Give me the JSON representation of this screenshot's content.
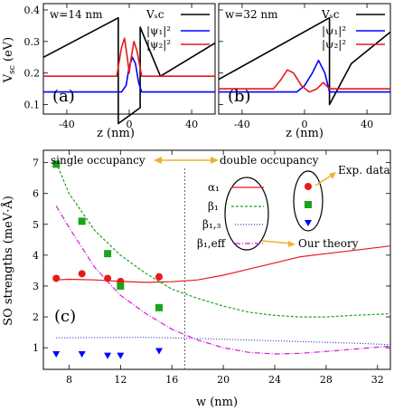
{
  "panel_a_label": "(a)",
  "panel_b_label": "(b)",
  "panel_c_label": "(c)",
  "panel_a_w": "w=14 nm",
  "panel_b_w": "w=32 nm",
  "legend_top": [
    "Vₛc",
    "|ψ₁|²",
    "|ψ₂|²"
  ],
  "legend_c": [
    "α₁",
    "β₁",
    "β₁,₃",
    "β₁,eff"
  ],
  "annotations": {
    "single": "single occupancy",
    "double": "double occupancy",
    "exp": "Exp. data",
    "theory": "Our theory"
  },
  "colors": {
    "vsc": "#000000",
    "psi1": "#0000ff",
    "psi2": "#e8191c",
    "alpha": "#e8191c",
    "beta": "#1aa31a",
    "beta13": "#3333cc",
    "betaeff": "#d61bd6",
    "arrow": "#f0b030",
    "divider": "#666666"
  },
  "chart_data": [
    {
      "type": "line",
      "panel": "a",
      "xlabel": "z (nm)",
      "ylabel": "Vₛc (eV)",
      "xlim": [
        -55,
        55
      ],
      "ylim": [
        0.07,
        0.42
      ],
      "xticks": [
        -40,
        0,
        40
      ],
      "yticks": [
        0.1,
        0.2,
        0.3,
        0.4
      ],
      "series": [
        {
          "name": "Vₛc",
          "x": [
            -55,
            -7,
            -7,
            7,
            7,
            20,
            55
          ],
          "y": [
            0.25,
            0.375,
            0.04,
            0.09,
            0.345,
            0.19,
            0.295
          ]
        },
        {
          "name": "|ψ₁|²",
          "x": [
            -55,
            -5,
            -2,
            0,
            2,
            4,
            6,
            8,
            55
          ],
          "y": [
            0.14,
            0.14,
            0.16,
            0.22,
            0.25,
            0.23,
            0.17,
            0.14,
            0.14
          ]
        },
        {
          "name": "|ψ₂|²",
          "x": [
            -55,
            -8,
            -5,
            -3,
            -1,
            0,
            1,
            3,
            5,
            8,
            55
          ],
          "y": [
            0.19,
            0.19,
            0.28,
            0.31,
            0.24,
            0.2,
            0.24,
            0.3,
            0.27,
            0.19,
            0.19
          ]
        }
      ]
    },
    {
      "type": "line",
      "panel": "b",
      "xlabel": "z (nm)",
      "xlim": [
        -55,
        55
      ],
      "ylim": [
        0.07,
        0.42
      ],
      "xticks": [
        -40,
        0,
        40
      ],
      "series": [
        {
          "name": "Vₛc",
          "x": [
            -55,
            16,
            16,
            30,
            55
          ],
          "y": [
            0.18,
            0.375,
            0.1,
            0.23,
            0.33
          ]
        },
        {
          "name": "|ψ₁|²",
          "x": [
            -55,
            -5,
            0,
            5,
            9,
            13,
            16,
            55
          ],
          "y": [
            0.14,
            0.14,
            0.16,
            0.2,
            0.24,
            0.2,
            0.14,
            0.14
          ]
        },
        {
          "name": "|ψ₂|²",
          "x": [
            -55,
            -20,
            -15,
            -11,
            -7,
            -2,
            3,
            8,
            12,
            16,
            55
          ],
          "y": [
            0.15,
            0.15,
            0.18,
            0.21,
            0.2,
            0.16,
            0.14,
            0.15,
            0.17,
            0.15,
            0.15
          ]
        }
      ]
    },
    {
      "type": "scatter",
      "panel": "c",
      "xlabel": "w (nm)",
      "ylabel": "SO strengths (meV·Å)",
      "xlim": [
        6,
        33
      ],
      "ylim": [
        0.3,
        7.4
      ],
      "xticks": [
        8,
        12,
        16,
        20,
        24,
        28,
        32
      ],
      "yticks": [
        1,
        2,
        3,
        4,
        5,
        6,
        7
      ],
      "divider_x": 17,
      "series": [
        {
          "name": "α₁",
          "style": "solid",
          "x": [
            7,
            8,
            10,
            12,
            14,
            16,
            18,
            20,
            22,
            24,
            26,
            28,
            30,
            33
          ],
          "y": [
            3.2,
            3.22,
            3.2,
            3.15,
            3.12,
            3.14,
            3.2,
            3.35,
            3.55,
            3.75,
            3.95,
            4.05,
            4.15,
            4.3
          ]
        },
        {
          "name": "β₁",
          "style": "dashed",
          "x": [
            7,
            8,
            10,
            12,
            14,
            16,
            18,
            20,
            22,
            24,
            26,
            28,
            30,
            33
          ],
          "y": [
            7.0,
            6.0,
            4.8,
            4.0,
            3.4,
            2.9,
            2.6,
            2.35,
            2.15,
            2.05,
            2.0,
            2.0,
            2.05,
            2.1
          ]
        },
        {
          "name": "β₁,₃",
          "style": "dotted",
          "x": [
            7,
            10,
            14,
            18,
            22,
            26,
            30,
            33
          ],
          "y": [
            1.32,
            1.33,
            1.34,
            1.3,
            1.25,
            1.2,
            1.15,
            1.1
          ]
        },
        {
          "name": "β₁,eff",
          "style": "dashdot",
          "x": [
            7,
            8,
            10,
            12,
            14,
            16,
            18,
            20,
            22,
            24,
            26,
            28,
            30,
            33
          ],
          "y": [
            5.6,
            4.9,
            3.6,
            2.7,
            2.1,
            1.6,
            1.25,
            1.0,
            0.85,
            0.8,
            0.82,
            0.88,
            0.95,
            1.05
          ]
        },
        {
          "name": "α₁ exp",
          "marker": "circle",
          "x": [
            7,
            9,
            11,
            12,
            15
          ],
          "y": [
            3.25,
            3.4,
            3.25,
            3.15,
            3.3
          ]
        },
        {
          "name": "β₁ exp",
          "marker": "square",
          "x": [
            7,
            9,
            11,
            12,
            15
          ],
          "y": [
            6.95,
            5.1,
            4.05,
            3.0,
            2.3
          ]
        },
        {
          "name": "β₁,₃ exp",
          "marker": "triangle",
          "x": [
            7,
            9,
            11,
            12,
            15
          ],
          "y": [
            0.8,
            0.8,
            0.75,
            0.75,
            0.9
          ]
        }
      ]
    }
  ]
}
